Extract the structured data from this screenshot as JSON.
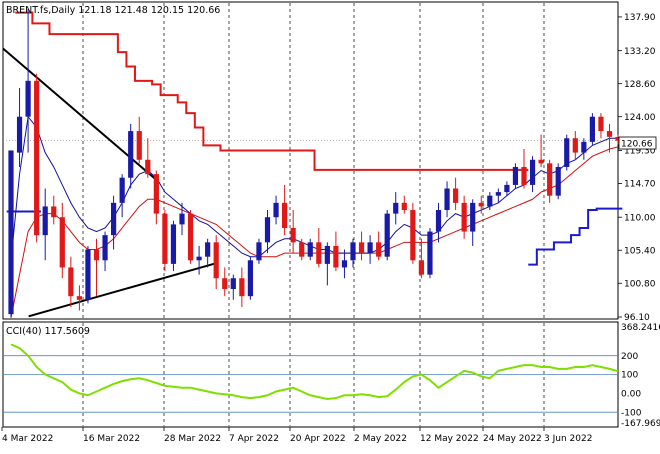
{
  "header": {
    "symbol_line": "BRENT.fs,Daily  121.18 121.48 120.15 120.66"
  },
  "colors": {
    "up": "#1a1aa8",
    "down": "#e01818",
    "ma_fast": "#1010a0",
    "ma_slow": "#d01010",
    "trail": "#e01818",
    "cci": "#7ee000",
    "price_tag_bg": "#ffffff",
    "grid": "#000000",
    "ref_line": "#4f86c6"
  },
  "chart_data": [
    {
      "type": "candlestick",
      "title": "BRENT.fs,Daily",
      "last_price_label": "120.66",
      "y_ticks": [
        "137.90",
        "133.20",
        "128.60",
        "124.00",
        "119.30",
        "114.70",
        "110.00",
        "105.40",
        "100.80",
        "96.10"
      ],
      "x_ticks": [
        "4 Mar 2022",
        "16 Mar 2022",
        "28 Mar 2022",
        "7 Apr 2022",
        "20 Apr 2022",
        "2 May 2022",
        "12 May 2022",
        "24 May 2022",
        "3 Jun 2022"
      ],
      "ylim": [
        96.1,
        139.7
      ],
      "candles": [
        [
          96.5,
          119.0,
          96.0,
          119.3
        ],
        [
          119.0,
          128.0,
          117.0,
          124.0
        ],
        [
          124.0,
          139.0,
          119.0,
          129.0
        ],
        [
          129.0,
          130.0,
          106.5,
          107.5
        ],
        [
          107.5,
          114.0,
          104.0,
          111.5
        ],
        [
          111.5,
          113.0,
          109.0,
          110.0
        ],
        [
          110.0,
          112.0,
          101.5,
          103.0
        ],
        [
          103.0,
          104.5,
          97.5,
          99.0
        ],
        [
          99.0,
          100.5,
          97.0,
          98.5
        ],
        [
          98.5,
          106.0,
          98.0,
          105.5
        ],
        [
          105.5,
          107.0,
          99.0,
          104.0
        ],
        [
          104.0,
          108.0,
          102.5,
          107.5
        ],
        [
          107.5,
          113.0,
          105.5,
          112.0
        ],
        [
          112.0,
          116.0,
          110.0,
          115.5
        ],
        [
          115.5,
          123.0,
          114.0,
          122.0
        ],
        [
          122.0,
          124.0,
          117.5,
          118.0
        ],
        [
          118.0,
          121.0,
          115.5,
          116.0
        ],
        [
          116.0,
          116.5,
          109.0,
          110.5
        ],
        [
          110.5,
          111.0,
          102.5,
          103.5
        ],
        [
          103.5,
          109.5,
          102.5,
          109.0
        ],
        [
          109.0,
          112.0,
          107.5,
          110.5
        ],
        [
          110.5,
          111.0,
          103.5,
          104.0
        ],
        [
          104.0,
          106.0,
          102.0,
          104.5
        ],
        [
          104.5,
          107.0,
          103.0,
          106.5
        ],
        [
          106.5,
          107.5,
          100.0,
          101.5
        ],
        [
          101.5,
          103.0,
          99.0,
          100.0
        ],
        [
          100.0,
          102.0,
          98.5,
          101.5
        ],
        [
          101.5,
          103.0,
          97.5,
          99.0
        ],
        [
          99.0,
          104.5,
          98.5,
          104.0
        ],
        [
          104.0,
          107.0,
          103.5,
          106.5
        ],
        [
          106.5,
          111.0,
          105.0,
          110.0
        ],
        [
          110.0,
          113.0,
          109.0,
          112.0
        ],
        [
          112.0,
          114.5,
          107.5,
          108.5
        ],
        [
          108.5,
          111.0,
          105.0,
          106.5
        ],
        [
          106.5,
          107.0,
          104.0,
          104.5
        ],
        [
          104.5,
          107.0,
          104.0,
          106.5
        ],
        [
          106.5,
          108.5,
          103.0,
          103.5
        ],
        [
          103.5,
          106.5,
          100.5,
          106.0
        ],
        [
          106.0,
          108.0,
          102.5,
          103.0
        ],
        [
          103.0,
          105.5,
          101.5,
          104.0
        ],
        [
          104.0,
          107.0,
          103.0,
          106.5
        ],
        [
          106.5,
          108.0,
          104.0,
          105.0
        ],
        [
          105.0,
          107.5,
          103.5,
          106.5
        ],
        [
          106.5,
          108.0,
          104.0,
          104.5
        ],
        [
          104.5,
          111.0,
          104.0,
          110.5
        ],
        [
          110.5,
          113.5,
          109.0,
          112.0
        ],
        [
          112.0,
          113.0,
          110.5,
          111.0
        ],
        [
          111.0,
          112.0,
          103.5,
          104.0
        ],
        [
          104.0,
          107.0,
          101.5,
          102.0
        ],
        [
          102.0,
          108.5,
          101.5,
          108.0
        ],
        [
          108.0,
          112.0,
          106.5,
          111.0
        ],
        [
          111.0,
          115.0,
          110.0,
          114.0
        ],
        [
          114.0,
          115.5,
          111.0,
          112.0
        ],
        [
          112.0,
          113.0,
          107.0,
          108.0
        ],
        [
          108.0,
          112.5,
          106.0,
          112.0
        ],
        [
          112.0,
          113.0,
          110.5,
          111.5
        ],
        [
          111.5,
          113.5,
          111.0,
          113.0
        ],
        [
          113.0,
          114.0,
          112.0,
          113.5
        ],
        [
          113.5,
          115.0,
          113.0,
          114.5
        ],
        [
          114.5,
          117.5,
          114.0,
          117.0
        ],
        [
          117.0,
          119.5,
          114.0,
          114.5
        ],
        [
          114.5,
          118.5,
          113.5,
          118.0
        ],
        [
          118.0,
          121.5,
          117.0,
          117.5
        ],
        [
          117.5,
          118.0,
          112.0,
          113.0
        ],
        [
          113.0,
          117.5,
          112.5,
          117.0
        ],
        [
          117.0,
          121.5,
          116.5,
          121.0
        ],
        [
          121.0,
          122.0,
          118.0,
          119.0
        ],
        [
          119.0,
          121.0,
          118.0,
          120.5
        ],
        [
          120.5,
          124.5,
          120.0,
          124.0
        ],
        [
          124.0,
          124.5,
          121.0,
          122.0
        ],
        [
          122.0,
          123.0,
          119.0,
          121.2
        ],
        [
          121.18,
          121.48,
          120.15,
          120.66
        ]
      ],
      "ma_fast": [
        104.0,
        116.0,
        124.0,
        122.5,
        119.0,
        117.0,
        114.5,
        112.0,
        110.0,
        108.5,
        108.0,
        108.5,
        110.0,
        112.0,
        114.5,
        116.0,
        116.5,
        115.5,
        113.5,
        112.5,
        111.5,
        110.5,
        109.5,
        109.0,
        108.0,
        107.0,
        106.0,
        105.0,
        104.5,
        104.5,
        105.5,
        106.5,
        107.0,
        107.0,
        106.5,
        106.0,
        105.5,
        105.5,
        105.0,
        105.0,
        105.0,
        105.0,
        105.0,
        105.5,
        106.5,
        108.0,
        109.0,
        108.5,
        107.5,
        107.5,
        108.0,
        109.5,
        110.5,
        110.0,
        110.5,
        111.0,
        111.5,
        112.0,
        113.0,
        114.0,
        114.5,
        115.5,
        116.5,
        116.0,
        116.5,
        117.5,
        118.0,
        119.0,
        120.0,
        120.5,
        121.0,
        121.0
      ],
      "ma_slow": [
        96.0,
        102.0,
        108.0,
        110.0,
        110.5,
        110.5,
        109.5,
        108.0,
        106.5,
        105.5,
        105.5,
        106.0,
        107.0,
        108.5,
        110.0,
        111.5,
        112.5,
        112.5,
        112.0,
        111.5,
        111.0,
        110.5,
        110.0,
        109.5,
        109.0,
        108.0,
        107.0,
        106.0,
        105.0,
        104.5,
        104.5,
        104.5,
        105.0,
        105.0,
        105.0,
        105.0,
        105.0,
        105.0,
        105.0,
        105.0,
        105.0,
        105.0,
        105.0,
        105.0,
        105.5,
        106.0,
        106.5,
        106.5,
        106.5,
        106.5,
        107.0,
        107.5,
        108.0,
        108.5,
        109.0,
        109.5,
        110.0,
        110.5,
        111.0,
        111.5,
        112.0,
        112.5,
        113.5,
        114.0,
        114.5,
        115.5,
        116.5,
        117.5,
        118.5,
        119.0,
        119.5,
        119.8
      ],
      "donchian_upper": [
        [
          1,
          138.5
        ],
        [
          2,
          138.5
        ],
        [
          3,
          137.0
        ],
        [
          4,
          137.0
        ],
        [
          5,
          135.5
        ],
        [
          6,
          135.5
        ],
        [
          7,
          135.5
        ],
        [
          8,
          135.5
        ],
        [
          9,
          135.5
        ],
        [
          10,
          135.5
        ],
        [
          11,
          135.5
        ],
        [
          12,
          135.5
        ],
        [
          13,
          133.0
        ],
        [
          14,
          131.0
        ],
        [
          15,
          129.0
        ],
        [
          16,
          129.0
        ],
        [
          17,
          128.5
        ],
        [
          18,
          127.0
        ],
        [
          19,
          127.0
        ],
        [
          20,
          126.0
        ],
        [
          21,
          124.5
        ],
        [
          22,
          122.5
        ],
        [
          23,
          120.0
        ],
        [
          24,
          120.0
        ],
        [
          25,
          119.3
        ],
        [
          26,
          119.3
        ],
        [
          27,
          119.3
        ],
        [
          28,
          119.3
        ],
        [
          29,
          119.3
        ],
        [
          30,
          119.3
        ],
        [
          31,
          119.3
        ],
        [
          32,
          119.3
        ],
        [
          33,
          119.3
        ],
        [
          34,
          119.3
        ],
        [
          35,
          119.3
        ],
        [
          36,
          116.6
        ],
        [
          37,
          116.6
        ],
        [
          38,
          116.6
        ],
        [
          39,
          116.6
        ],
        [
          40,
          116.6
        ],
        [
          41,
          116.6
        ],
        [
          42,
          116.6
        ],
        [
          43,
          116.6
        ],
        [
          44,
          116.6
        ],
        [
          45,
          116.6
        ],
        [
          46,
          116.6
        ],
        [
          47,
          116.6
        ],
        [
          48,
          116.6
        ],
        [
          49,
          116.6
        ],
        [
          50,
          116.6
        ],
        [
          51,
          116.6
        ],
        [
          52,
          116.6
        ],
        [
          53,
          116.6
        ],
        [
          54,
          116.6
        ],
        [
          55,
          116.6
        ],
        [
          56,
          116.6
        ],
        [
          57,
          116.6
        ],
        [
          58,
          116.6
        ],
        [
          59,
          116.6
        ],
        [
          60,
          116.6
        ]
      ],
      "donchian_lower_left": [
        [
          0,
          110.8
        ],
        [
          1,
          110.8
        ],
        [
          2,
          110.8
        ],
        [
          3,
          110.8
        ]
      ],
      "donchian_lower_right": [
        [
          61,
          103.4
        ],
        [
          62,
          105.5
        ],
        [
          63,
          105.5
        ],
        [
          64,
          106.5
        ],
        [
          65,
          106.5
        ],
        [
          66,
          107.5
        ],
        [
          67,
          108.5
        ],
        [
          68,
          111.0
        ],
        [
          69,
          111.2
        ],
        [
          70,
          111.2
        ],
        [
          71,
          111.2
        ]
      ],
      "trendlines": [
        {
          "from": [
            0,
            133.5
          ],
          "to": [
            17,
            115.2
          ],
          "color": "#000000"
        },
        {
          "from": [
            3,
            96.2
          ],
          "to": [
            24,
            103.6
          ],
          "color": "#000000"
        }
      ],
      "hline": {
        "value": 120.66,
        "style": "dotted"
      }
    },
    {
      "type": "line",
      "title": "CCI(40) 117.5609",
      "y_ticks": [
        "368.2416",
        "200",
        "100",
        "0.00",
        "-100",
        "-167.969"
      ],
      "ref_levels": [
        200,
        100,
        -100
      ],
      "ylim": [
        -167.969,
        368.2416
      ],
      "values": [
        260,
        240,
        200,
        140,
        100,
        80,
        60,
        20,
        0,
        -10,
        10,
        30,
        50,
        65,
        75,
        80,
        70,
        55,
        40,
        35,
        30,
        30,
        20,
        10,
        0,
        -5,
        -10,
        -20,
        -25,
        -20,
        -10,
        10,
        20,
        30,
        10,
        -10,
        -20,
        -30,
        -25,
        -10,
        -10,
        -5,
        -10,
        -20,
        -15,
        20,
        60,
        90,
        100,
        70,
        30,
        60,
        90,
        120,
        110,
        90,
        80,
        120,
        130,
        140,
        150,
        150,
        140,
        140,
        130,
        130,
        140,
        140,
        150,
        140,
        130,
        117.5609
      ]
    }
  ]
}
